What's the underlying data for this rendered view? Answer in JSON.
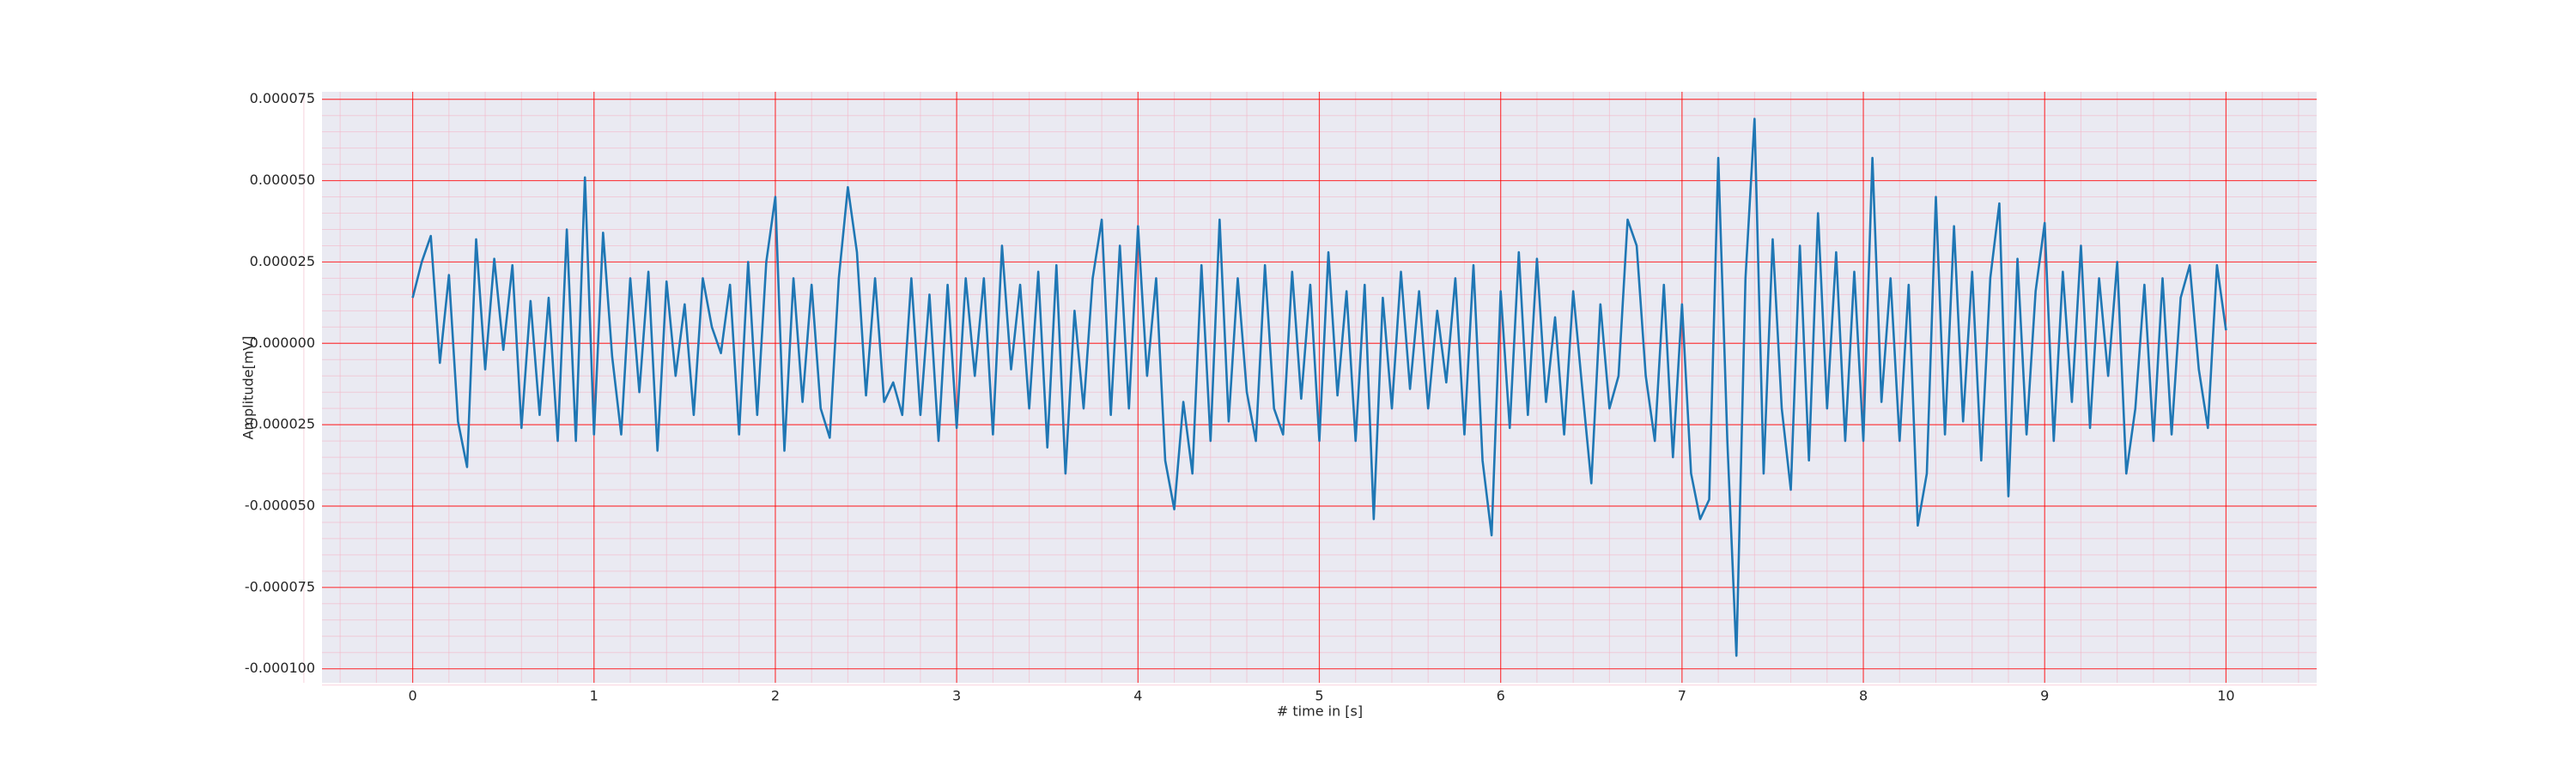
{
  "chart_data": {
    "type": "line",
    "xlabel": "# time in [s]",
    "ylabel": "Amplitude[mV]",
    "xlim": [
      -0.5,
      10.5
    ],
    "ylim": [
      -0.0001043,
      7.73e-05
    ],
    "xticks": [
      0,
      1,
      2,
      3,
      4,
      5,
      6,
      7,
      8,
      9,
      10
    ],
    "yticks": [
      {
        "value": -0.0001,
        "label": "-0.000100"
      },
      {
        "value": -7.5e-05,
        "label": "-0.000075"
      },
      {
        "value": -5e-05,
        "label": "-0.000050"
      },
      {
        "value": -2.5e-05,
        "label": "-0.000025"
      },
      {
        "value": 0,
        "label": "0.000000"
      },
      {
        "value": 2.5e-05,
        "label": "0.000025"
      },
      {
        "value": 5e-05,
        "label": "0.000050"
      },
      {
        "value": 7.5e-05,
        "label": "0.000075"
      }
    ],
    "grid": true,
    "minor_grid": true,
    "grid_color": "#ff0000",
    "minor_grid_color": "#f4b6c6",
    "background": "#eaeaf2",
    "x": [
      0,
      0.05,
      0.1,
      0.15,
      0.2,
      0.25,
      0.3,
      0.35,
      0.4,
      0.45,
      0.5,
      0.55,
      0.6,
      0.65,
      0.7,
      0.75,
      0.8,
      0.85,
      0.9,
      0.95,
      1,
      1.05,
      1.1,
      1.15,
      1.2,
      1.25,
      1.3,
      1.35,
      1.4,
      1.45,
      1.5,
      1.55,
      1.6,
      1.65,
      1.7,
      1.75,
      1.8,
      1.85,
      1.9,
      1.95,
      2,
      2.05,
      2.1,
      2.15,
      2.2,
      2.25,
      2.3,
      2.35,
      2.4,
      2.45,
      2.5,
      2.55,
      2.6,
      2.65,
      2.7,
      2.75,
      2.8,
      2.85,
      2.9,
      2.95,
      3,
      3.05,
      3.1,
      3.15,
      3.2,
      3.25,
      3.3,
      3.35,
      3.4,
      3.45,
      3.5,
      3.55,
      3.6,
      3.65,
      3.7,
      3.75,
      3.8,
      3.85,
      3.9,
      3.95,
      4,
      4.05,
      4.1,
      4.15,
      4.2,
      4.25,
      4.3,
      4.35,
      4.4,
      4.45,
      4.5,
      4.55,
      4.6,
      4.65,
      4.7,
      4.75,
      4.8,
      4.85,
      4.9,
      4.95,
      5,
      5.05,
      5.1,
      5.15,
      5.2,
      5.25,
      5.3,
      5.35,
      5.4,
      5.45,
      5.5,
      5.55,
      5.6,
      5.65,
      5.7,
      5.75,
      5.8,
      5.85,
      5.9,
      5.95,
      6,
      6.05,
      6.1,
      6.15,
      6.2,
      6.25,
      6.3,
      6.35,
      6.4,
      6.45,
      6.5,
      6.55,
      6.6,
      6.65,
      6.7,
      6.75,
      6.8,
      6.85,
      6.9,
      6.95,
      7,
      7.05,
      7.1,
      7.15,
      7.2,
      7.25,
      7.3,
      7.35,
      7.4,
      7.45,
      7.5,
      7.55,
      7.6,
      7.65,
      7.7,
      7.75,
      7.8,
      7.85,
      7.9,
      7.95,
      8,
      8.05,
      8.1,
      8.15,
      8.2,
      8.25,
      8.3,
      8.35,
      8.4,
      8.45,
      8.5,
      8.55,
      8.6,
      8.65,
      8.7,
      8.75,
      8.8,
      8.85,
      8.9,
      8.95,
      9,
      9.05,
      9.1,
      9.15,
      9.2,
      9.25,
      9.3,
      9.35,
      9.4,
      9.45,
      9.5,
      9.55,
      9.6,
      9.65,
      9.7,
      9.75,
      9.8,
      9.85,
      9.9,
      9.95,
      10
    ],
    "series": [
      {
        "color": "#1f77b4",
        "values": [
          1.4e-05,
          2.5e-05,
          3.3e-05,
          -6e-06,
          2.1e-05,
          -2.4e-05,
          -3.8e-05,
          3.2e-05,
          -8e-06,
          2.6e-05,
          -2e-06,
          2.4e-05,
          -2.6e-05,
          1.3e-05,
          -2.2e-05,
          1.4e-05,
          -3e-05,
          3.5e-05,
          -3e-05,
          5.1e-05,
          -2.8e-05,
          3.4e-05,
          -4e-06,
          -2.8e-05,
          2e-05,
          -1.5e-05,
          2.2e-05,
          -3.3e-05,
          1.9e-05,
          -1e-05,
          1.2e-05,
          -2.2e-05,
          2e-05,
          5e-06,
          -3e-06,
          1.8e-05,
          -2.8e-05,
          2.5e-05,
          -2.2e-05,
          2.5e-05,
          4.5e-05,
          -3.3e-05,
          2e-05,
          -1.8e-05,
          1.8e-05,
          -2e-05,
          -2.9e-05,
          2e-05,
          4.8e-05,
          2.8e-05,
          -1.6e-05,
          2e-05,
          -1.8e-05,
          -1.2e-05,
          -2.2e-05,
          2e-05,
          -2.2e-05,
          1.5e-05,
          -3e-05,
          1.8e-05,
          -2.6e-05,
          2e-05,
          -1e-05,
          2e-05,
          -2.8e-05,
          3e-05,
          -8e-06,
          1.8e-05,
          -2e-05,
          2.2e-05,
          -3.2e-05,
          2.4e-05,
          -4e-05,
          1e-05,
          -2e-05,
          2e-05,
          3.8e-05,
          -2.2e-05,
          3e-05,
          -2e-05,
          3.6e-05,
          -1e-05,
          2e-05,
          -3.6e-05,
          -5.1e-05,
          -1.8e-05,
          -4e-05,
          2.4e-05,
          -3e-05,
          3.8e-05,
          -2.4e-05,
          2e-05,
          -1.5e-05,
          -3e-05,
          2.4e-05,
          -2e-05,
          -2.8e-05,
          2.2e-05,
          -1.7e-05,
          1.8e-05,
          -3e-05,
          2.8e-05,
          -1.6e-05,
          1.6e-05,
          -3e-05,
          1.8e-05,
          -5.4e-05,
          1.4e-05,
          -2e-05,
          2.2e-05,
          -1.4e-05,
          1.6e-05,
          -2e-05,
          1e-05,
          -1.2e-05,
          2e-05,
          -2.8e-05,
          2.4e-05,
          -3.6e-05,
          -5.9e-05,
          1.6e-05,
          -2.6e-05,
          2.8e-05,
          -2.2e-05,
          2.6e-05,
          -1.8e-05,
          8e-06,
          -2.8e-05,
          1.6e-05,
          -1.4e-05,
          -4.3e-05,
          1.2e-05,
          -2e-05,
          -1e-05,
          3.8e-05,
          3e-05,
          -1e-05,
          -3e-05,
          1.8e-05,
          -3.5e-05,
          1.2e-05,
          -4e-05,
          -5.4e-05,
          -4.8e-05,
          5.7e-05,
          -3e-05,
          -9.6e-05,
          2e-05,
          6.9e-05,
          -4e-05,
          3.2e-05,
          -2e-05,
          -4.5e-05,
          3e-05,
          -3.6e-05,
          4e-05,
          -2e-05,
          2.8e-05,
          -3e-05,
          2.2e-05,
          -3e-05,
          5.7e-05,
          -1.8e-05,
          2e-05,
          -3e-05,
          1.8e-05,
          -5.6e-05,
          -4e-05,
          4.5e-05,
          -2.8e-05,
          3.6e-05,
          -2.4e-05,
          2.2e-05,
          -3.6e-05,
          2e-05,
          4.3e-05,
          -4.7e-05,
          2.6e-05,
          -2.8e-05,
          1.6e-05,
          3.7e-05,
          -3e-05,
          2.2e-05,
          -1.8e-05,
          3e-05,
          -2.6e-05,
          2e-05,
          -1e-05,
          2.5e-05,
          -4e-05,
          -2e-05,
          1.8e-05,
          -3e-05,
          2e-05,
          -2.8e-05,
          1.4e-05,
          2.4e-05,
          -8e-06,
          -2.6e-05,
          2.4e-05,
          4e-06
        ]
      }
    ]
  }
}
